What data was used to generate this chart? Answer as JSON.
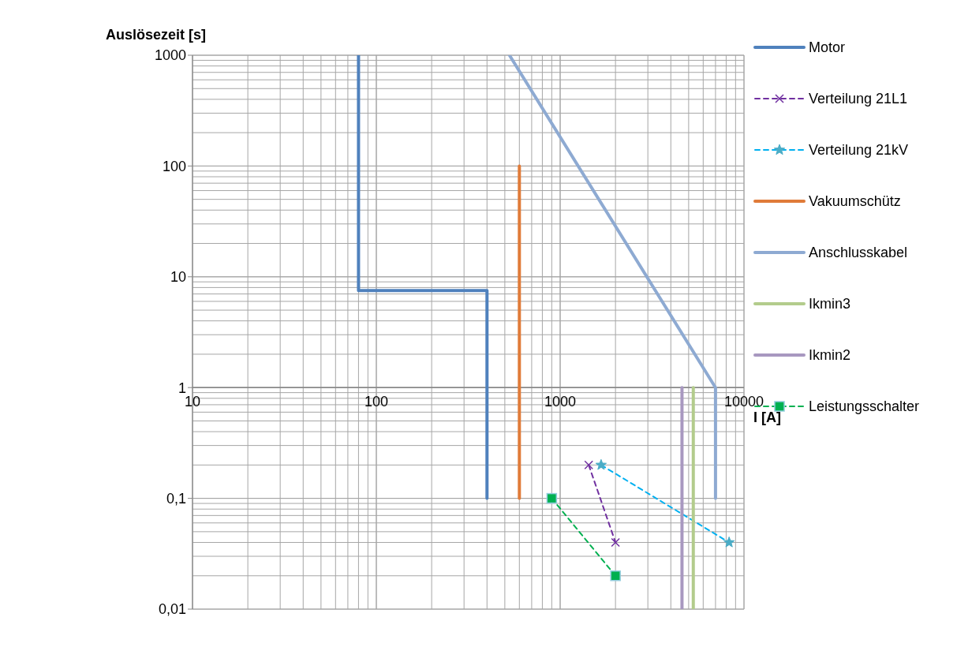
{
  "chart_data": {
    "type": "line",
    "xlabel": "I [A]",
    "ylabel": "Auslösezeit [s]",
    "log": "xy",
    "xlim": [
      10,
      10000
    ],
    "xticks": [
      10,
      100,
      1000,
      10000
    ],
    "ylim": [
      0.01,
      1000
    ],
    "yticks": [
      {
        "value": 0.01,
        "label": "0,01"
      },
      {
        "value": 0.1,
        "label": "0,1"
      },
      1,
      10,
      100,
      1000
    ],
    "grid": true,
    "legend": "right",
    "series": [
      {
        "name": "Motor",
        "color": "#4f81bd",
        "x": [
          80,
          80,
          400,
          400
        ],
        "values": [
          1000,
          7.5,
          7.5,
          0.1
        ],
        "marker": "none",
        "line_style": "solid"
      },
      {
        "name": "Verteilung 21L1",
        "color": "#7030a0",
        "x": [
          1430,
          2000
        ],
        "values": [
          0.2,
          0.04
        ],
        "marker": "cross",
        "line_style": "dashed"
      },
      {
        "name": "Verteilung 21kV",
        "color": "#00b0f0",
        "x": [
          1670,
          8300
        ],
        "values": [
          0.2,
          0.04
        ],
        "marker": "star",
        "line_style": "dashed"
      },
      {
        "name": "Vakuumschütz",
        "color": "#e07b39",
        "x": [
          600,
          600
        ],
        "values": [
          100,
          0.1
        ],
        "marker": "none",
        "line_style": "solid"
      },
      {
        "name": "Anschlusskabel",
        "color": "#8eaad2",
        "x": [
          530,
          7000,
          7000
        ],
        "values": [
          1000,
          1,
          0.1
        ],
        "marker": "none",
        "line_style": "solid"
      },
      {
        "name": "Ikmin3",
        "color": "#b3cc8c",
        "x": [
          5300,
          5300
        ],
        "values": [
          1,
          0.01
        ],
        "marker": "none",
        "line_style": "solid"
      },
      {
        "name": "Ikmin2",
        "color": "#a898c0",
        "x": [
          4600,
          4600
        ],
        "values": [
          1,
          0.01
        ],
        "marker": "none",
        "line_style": "solid"
      },
      {
        "name": "Leistungsschalter",
        "color": "#00b050",
        "x": [
          900,
          2000
        ],
        "values": [
          0.1,
          0.02
        ],
        "marker": "square",
        "line_style": "dashed"
      }
    ]
  }
}
